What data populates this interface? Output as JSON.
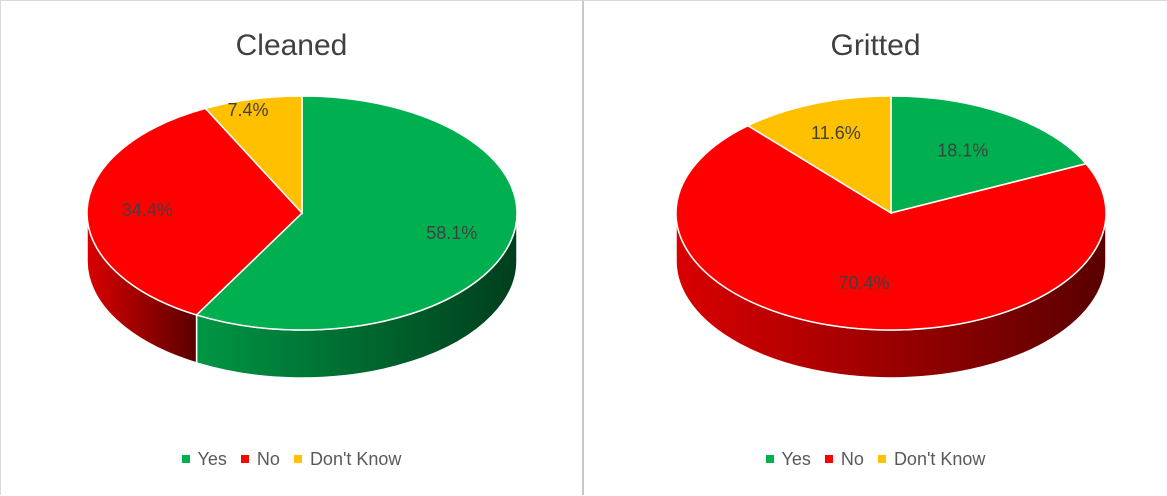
{
  "chart_data": [
    {
      "type": "pie",
      "title": "Cleaned",
      "categories": [
        "Yes",
        "No",
        "Don't Know"
      ],
      "values": [
        58.1,
        34.4,
        7.4
      ],
      "data_labels": [
        "58.1%",
        "34.4%",
        "7.4%"
      ],
      "colors": [
        "#00b050",
        "#ff0000",
        "#ffc000"
      ],
      "style": "3d",
      "legend": "bottom"
    },
    {
      "type": "pie",
      "title": "Gritted",
      "categories": [
        "Yes",
        "No",
        "Don't Know"
      ],
      "values": [
        18.1,
        70.4,
        11.6
      ],
      "data_labels": [
        "18.1%",
        "70.4%",
        "11.6%"
      ],
      "colors": [
        "#00b050",
        "#ff0000",
        "#ffc000"
      ],
      "style": "3d",
      "legend": "bottom"
    }
  ]
}
